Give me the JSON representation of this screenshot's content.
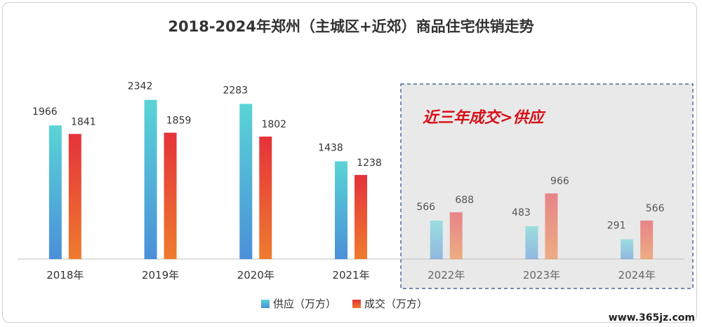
{
  "chart_data": {
    "type": "bar",
    "title": "2018-2024年郑州（主城区+近郊）商品住宅供销走势",
    "categories": [
      "2018年",
      "2019年",
      "2020年",
      "2021年",
      "2022年",
      "2023年",
      "2024年"
    ],
    "series": [
      {
        "name": "供应（万方）",
        "values": [
          1966,
          2342,
          2283,
          1438,
          566,
          483,
          291
        ],
        "color_top": "#5ad4d6",
        "color_bottom": "#4a90d9"
      },
      {
        "name": "成交（万方）",
        "values": [
          1841,
          1859,
          1802,
          1238,
          688,
          966,
          566
        ],
        "color_top": "#e5323a",
        "color_bottom": "#ef7b2e"
      }
    ],
    "ylim": [
      0,
      2400
    ],
    "grid": false,
    "legend_position": "bottom-center",
    "highlight": {
      "categories": [
        "2022年",
        "2023年",
        "2024年"
      ],
      "label": "近三年成交>供应"
    }
  },
  "watermark": "www.365jz.com"
}
